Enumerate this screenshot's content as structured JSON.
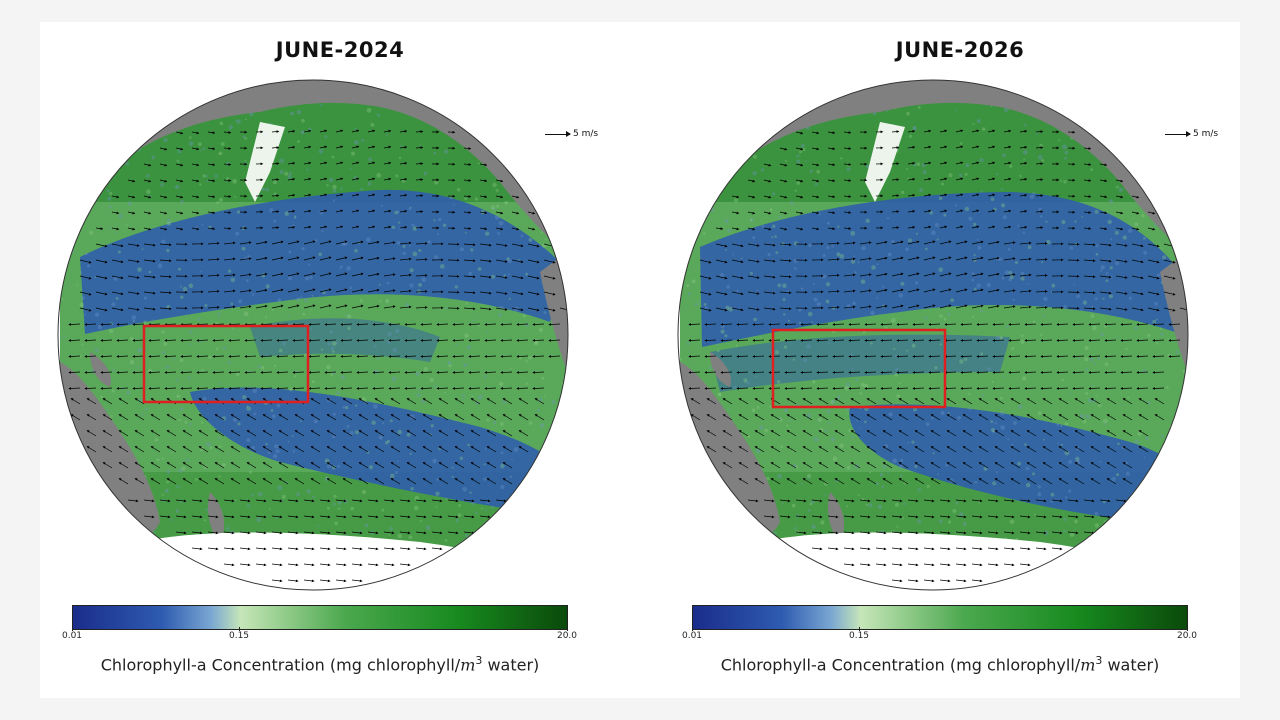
{
  "figure": {
    "colorscale": [
      "#1a2d8a",
      "#2e5bb0",
      "#7aa7d2",
      "#c6e6b8",
      "#4ba84e",
      "#178a1e",
      "#0b4a0b"
    ],
    "land_color": "#808080",
    "ice_color": "#ffffff",
    "highlight_color": "#e02020"
  },
  "panels": [
    {
      "title": "JUNE-2024",
      "scale_label": "5 m/s",
      "colorbar": {
        "min_label": "0.01",
        "mid_label": "0.15",
        "max_label": "20.0",
        "title_prefix": "Chlorophyll-a Concentration (mg chlorophyll/",
        "title_var": "m",
        "title_exp": "3",
        "title_suffix": " water)"
      }
    },
    {
      "title": "JUNE-2026",
      "scale_label": "5 m/s",
      "colorbar": {
        "min_label": "0.01",
        "mid_label": "0.15",
        "max_label": "20.0",
        "title_prefix": "Chlorophyll-a Concentration (mg chlorophyll/",
        "title_var": "m",
        "title_exp": "3",
        "title_suffix": " water)"
      }
    }
  ]
}
